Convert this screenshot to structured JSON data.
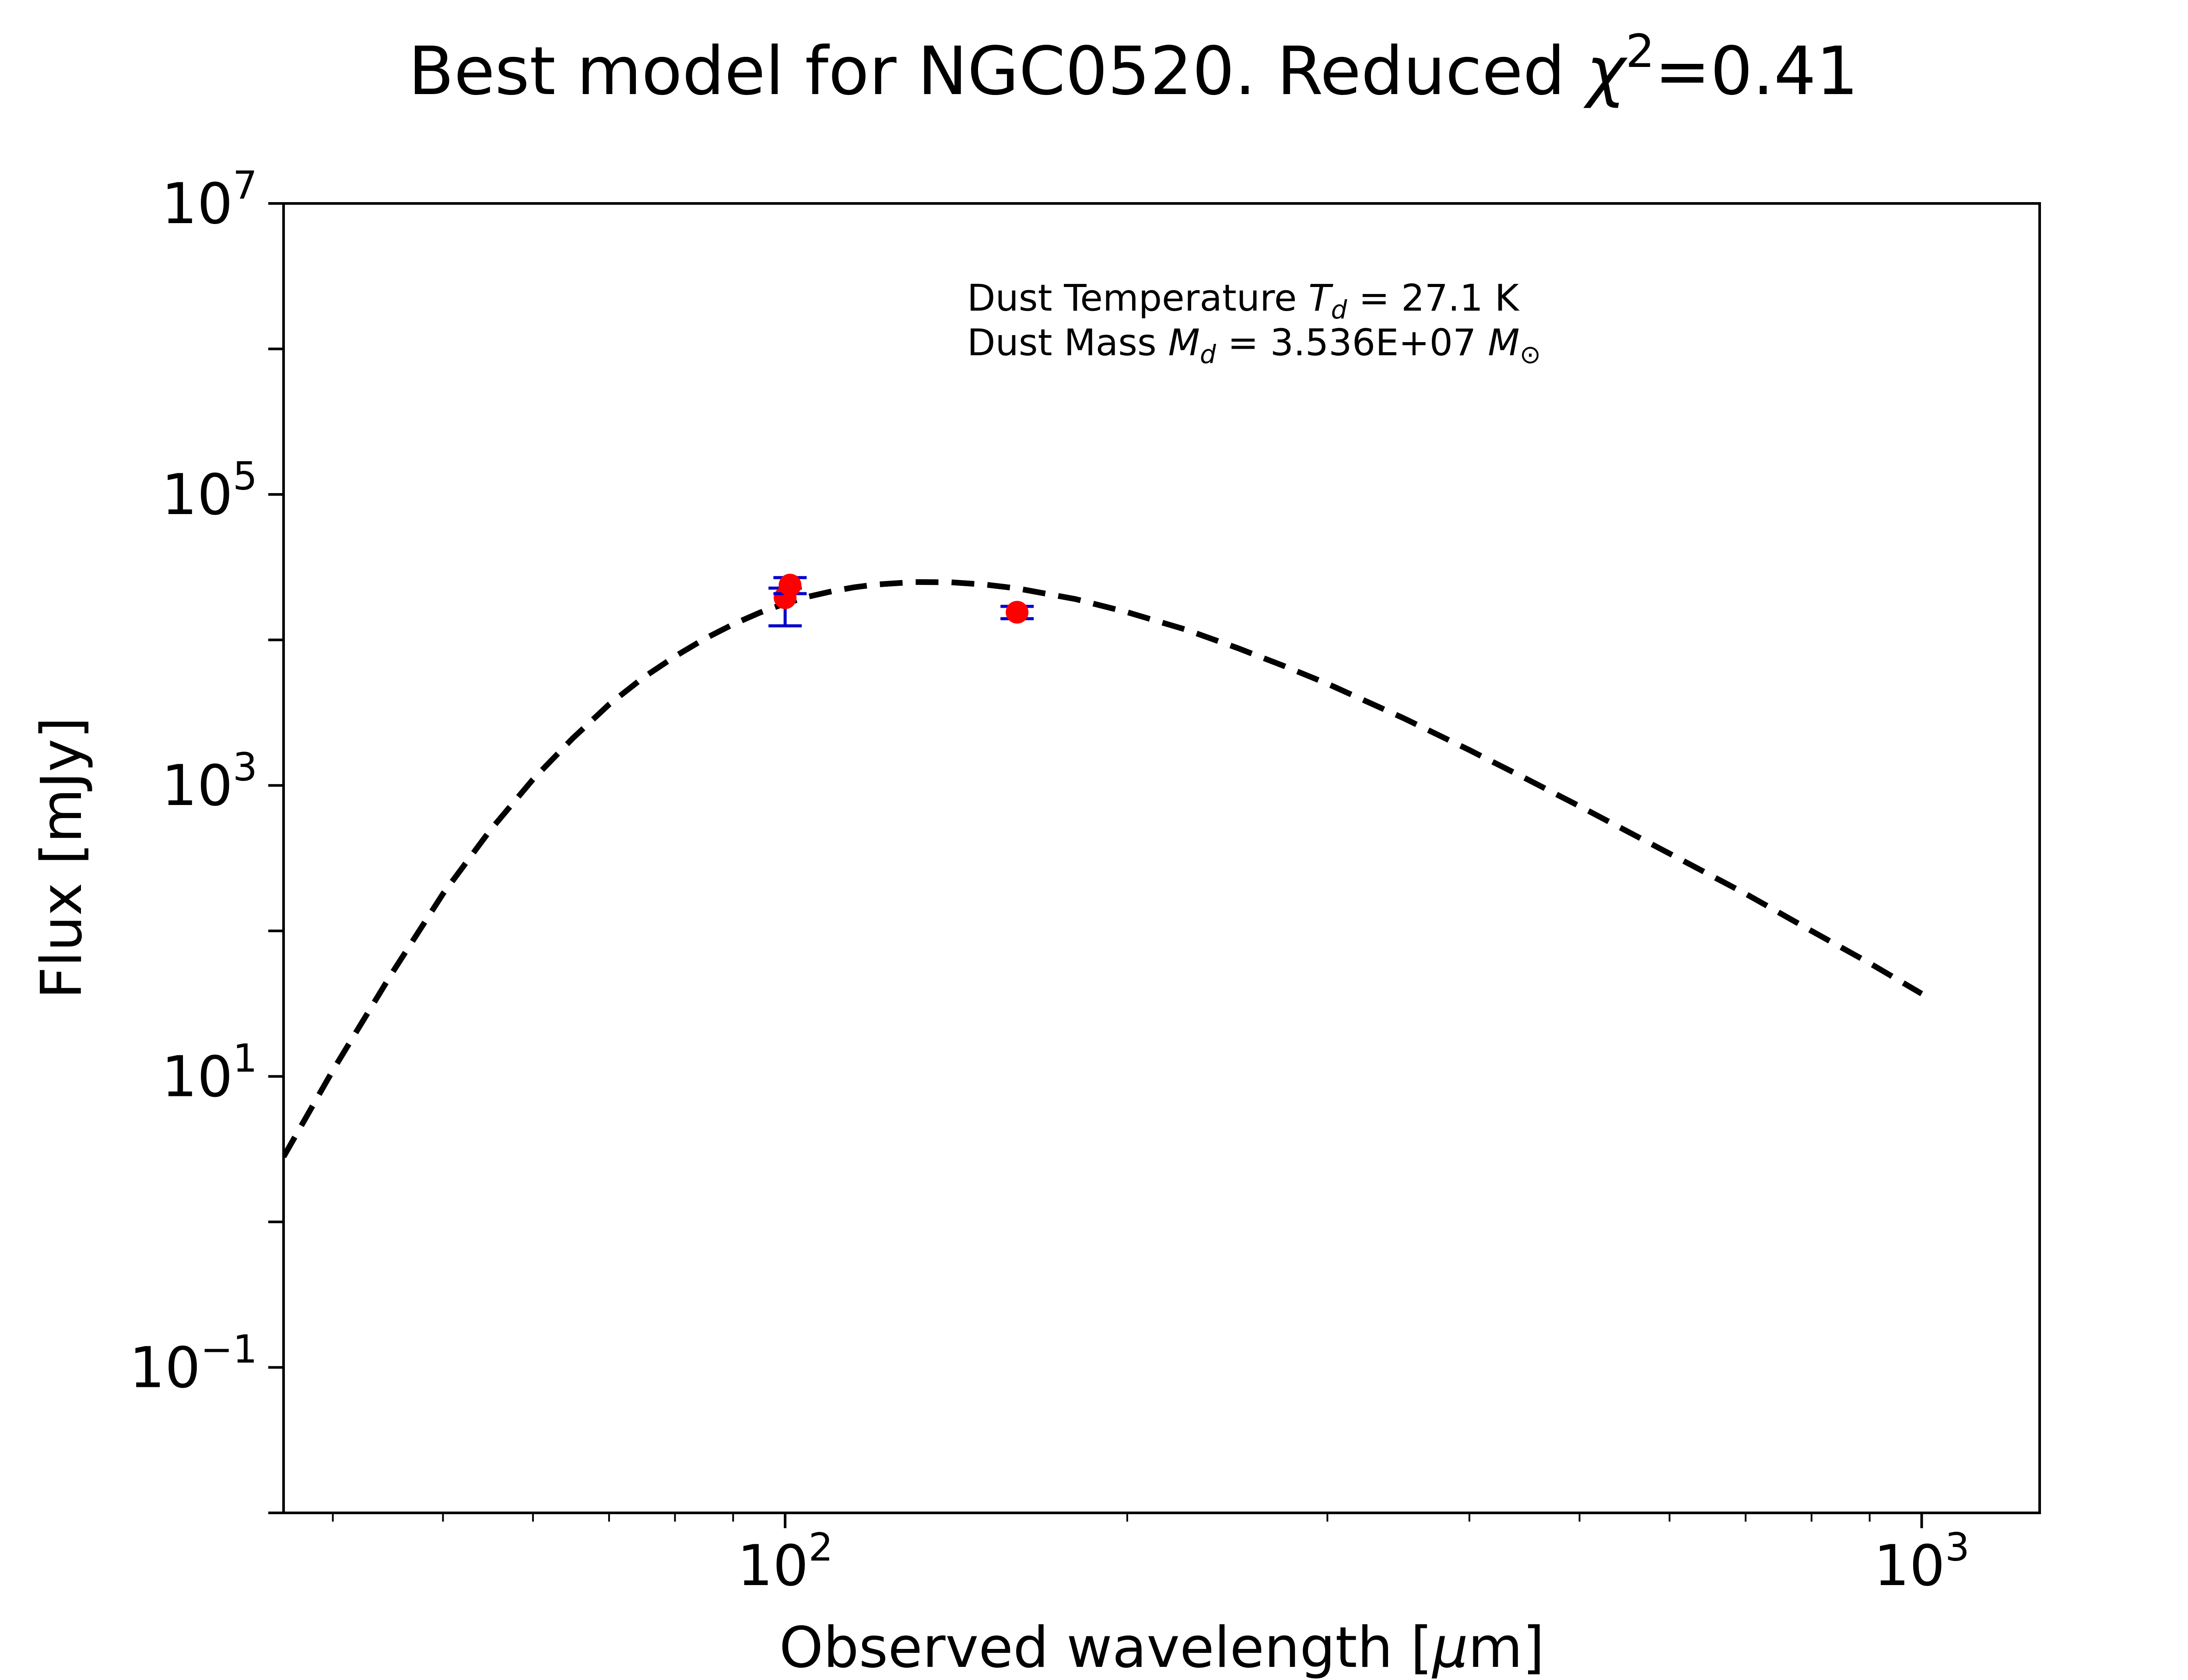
{
  "chart_data": {
    "type": "scatter",
    "title": {
      "prefix": "Best model for NGC0520. Reduced ",
      "chi": "χ",
      "sup": "2",
      "suffix": "=0.41"
    },
    "xlabel": {
      "prefix": "Observed wavelength [",
      "mu": "μ",
      "suffix": "m]"
    },
    "ylabel": "Flux [mJy]",
    "xscale": "log",
    "yscale": "log",
    "xlim": [
      36.2,
      1270
    ],
    "ylim": [
      0.01,
      10000000
    ],
    "xticks": [
      {
        "value": 100,
        "base": "10",
        "exp": "2"
      },
      {
        "value": 1000,
        "base": "10",
        "exp": "3"
      }
    ],
    "yticks": [
      {
        "value": 0.1,
        "base": "10",
        "exp": "−1"
      },
      {
        "value": 10,
        "base": "10",
        "exp": "1"
      },
      {
        "value": 1000,
        "base": "10",
        "exp": "3"
      },
      {
        "value": 100000,
        "base": "10",
        "exp": "5"
      }
    ],
    "ytop_label": {
      "value": 10000000,
      "base": "10",
      "exp": "7"
    },
    "annotation": {
      "line1": {
        "prefix": "Dust Temperature ",
        "sym": "T",
        "sub": "d",
        "suffix": " = 27.1 K"
      },
      "line2": {
        "prefix": "Dust Mass ",
        "sym": "M",
        "sub": "d",
        "mid": " = 3.536E+07 ",
        "sym2": "M",
        "sub2": "⊙"
      },
      "position": "top-center"
    },
    "model": {
      "name": "modified blackbody fit",
      "style": "dashed",
      "color": "#000000",
      "temperature_K": 27.1,
      "x": [
        36.2,
        40,
        45,
        50,
        55,
        60,
        65,
        70,
        75,
        80,
        85,
        90,
        95,
        100,
        105,
        110,
        115,
        120,
        130,
        140,
        150,
        160,
        180,
        200,
        225,
        250,
        275,
        300,
        350,
        400,
        450,
        500,
        600,
        700,
        800,
        900,
        1000
      ],
      "y": [
        2.8,
        11,
        50,
        180,
        490,
        1100,
        2100,
        3600,
        5500,
        7700,
        10200,
        12800,
        15400,
        17800,
        19900,
        21600,
        23000,
        24000,
        25000,
        24900,
        24000,
        22600,
        19100,
        15500,
        11800,
        8800,
        6600,
        5000,
        2900,
        1750,
        1100,
        720,
        340,
        180,
        100,
        60,
        37
      ]
    },
    "points": [
      {
        "x": 100,
        "y": 19500,
        "yerr_low": 7000,
        "yerr_high": 3200
      },
      {
        "x": 101,
        "y": 23800,
        "yerr_low": 3000,
        "yerr_high": 3000
      },
      {
        "x": 160,
        "y": 15500,
        "yerr_low": 1500,
        "yerr_high": 1500
      }
    ],
    "colors": {
      "points": "#ff0000",
      "errorbars": "#0000cc",
      "model": "#000000",
      "axes": "#000000"
    }
  }
}
